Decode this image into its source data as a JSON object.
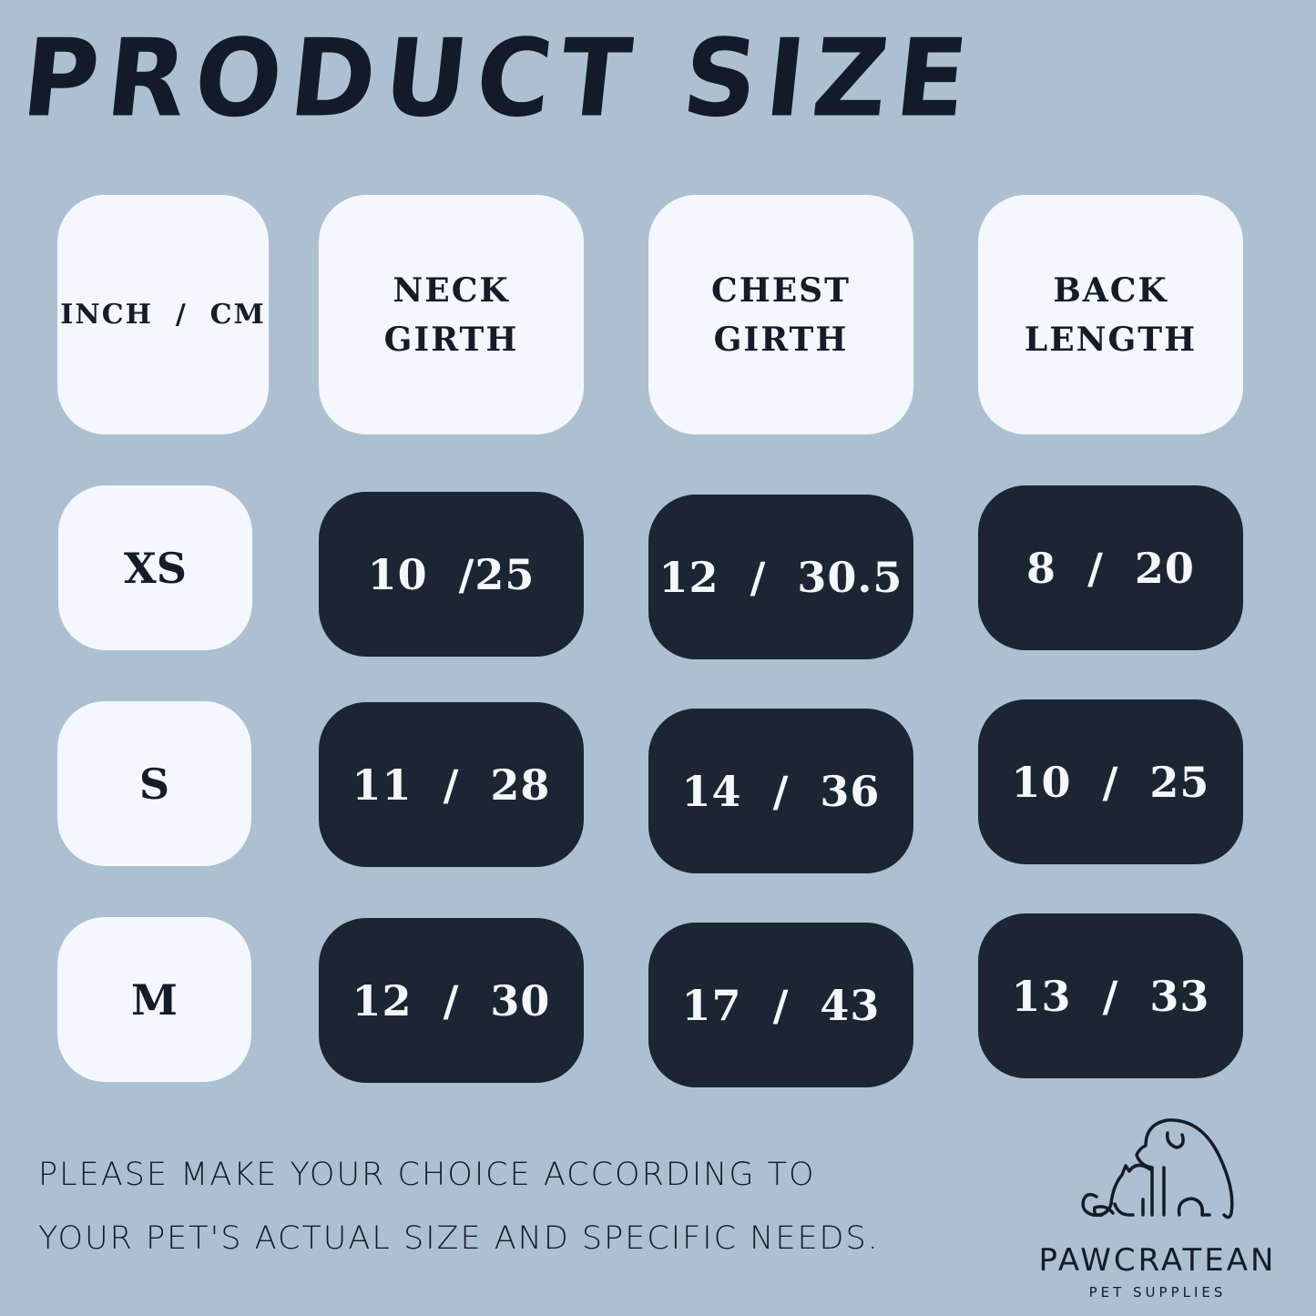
{
  "title": "PRODUCT SIZE",
  "header": {
    "unit": "INCH  /  CM",
    "columns": [
      "NECK\nGIRTH",
      "CHEST\nGIRTH",
      "BACK\nLENGTH"
    ]
  },
  "rows": [
    {
      "size": "XS",
      "values": [
        "10  /25",
        "12  /  30.5",
        "8  /  20"
      ]
    },
    {
      "size": "S",
      "values": [
        "11  /  28",
        "14  /  36",
        "10  /  25"
      ]
    },
    {
      "size": "M",
      "values": [
        "12  /  30",
        "17  /  43",
        "13  /  33"
      ]
    }
  ],
  "note": {
    "line1": "PLEASE MAKE YOUR CHOICE ACCORDING TO",
    "line2": "YOUR PET'S ACTUAL SIZE AND SPECIFIC NEEDS."
  },
  "brand": {
    "name": "PAWCRATEAN",
    "tagline": "PET SUPPLIES",
    "icon": "dog-cat-outline-logo"
  },
  "colors": {
    "background": "#adc0d2",
    "dark": "#1c2633",
    "light": "#f4f7fb"
  }
}
